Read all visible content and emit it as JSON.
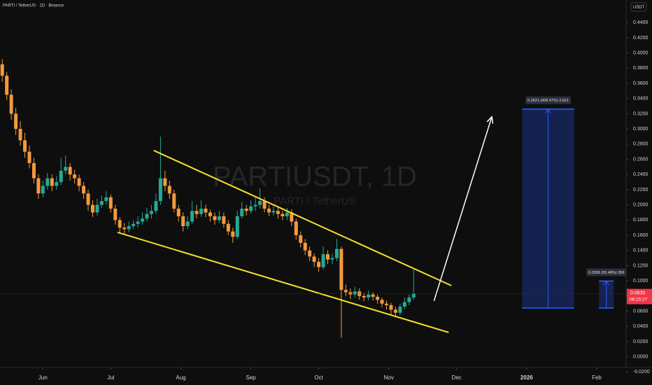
{
  "chart_data": {
    "type": "candlestick",
    "title": "PARTI / TetherUS · 1D · Binance",
    "watermark": "PARTIUSDT, 1D",
    "watermark_subtitle": "PARTI / TetherUS",
    "currency": "USDT",
    "up_color": "#22ab94",
    "down_color": "#f39a3c",
    "xlim": [
      0,
      277
    ],
    "xticks": [
      {
        "value": 19,
        "label": "Jun"
      },
      {
        "value": 49,
        "label": "Jul"
      },
      {
        "value": 80,
        "label": "Aug"
      },
      {
        "value": 111,
        "label": "Sep"
      },
      {
        "value": 141,
        "label": "Oct"
      },
      {
        "value": 172,
        "label": "Nov"
      },
      {
        "value": 202,
        "label": "Dec"
      },
      {
        "value": 233,
        "label": "2026"
      },
      {
        "value": 264,
        "label": "Feb"
      }
    ],
    "ylim": [
      -0.0141,
      0.4697
    ],
    "yticks": [
      {
        "value": 0.44,
        "label": "0.4400"
      },
      {
        "value": 0.42,
        "label": "0.4200"
      },
      {
        "value": 0.4,
        "label": "0.4000"
      },
      {
        "value": 0.38,
        "label": "0.3800"
      },
      {
        "value": 0.36,
        "label": "0.3600"
      },
      {
        "value": 0.34,
        "label": "0.3400"
      },
      {
        "value": 0.32,
        "label": "0.3200"
      },
      {
        "value": 0.3,
        "label": "0.3000"
      },
      {
        "value": 0.28,
        "label": "0.2800"
      },
      {
        "value": 0.26,
        "label": "0.2600"
      },
      {
        "value": 0.24,
        "label": "0.2400"
      },
      {
        "value": 0.22,
        "label": "0.2200"
      },
      {
        "value": 0.2,
        "label": "0.2000"
      },
      {
        "value": 0.18,
        "label": "0.1800"
      },
      {
        "value": 0.16,
        "label": "0.1600"
      },
      {
        "value": 0.14,
        "label": "0.1400"
      },
      {
        "value": 0.12,
        "label": "0.1200"
      },
      {
        "value": 0.1,
        "label": "0.1000"
      },
      {
        "value": 0.08,
        "label": "0.0800"
      },
      {
        "value": 0.06,
        "label": "0.0600"
      },
      {
        "value": 0.04,
        "label": "0.0400"
      },
      {
        "value": 0.02,
        "label": "0.0200"
      },
      {
        "value": 0,
        "label": "0.0000"
      },
      {
        "value": -0.02,
        "label": "-0.0200"
      }
    ],
    "x": [
      1,
      3,
      5,
      7,
      9,
      11,
      13,
      15,
      17,
      19,
      21,
      23,
      25,
      27,
      29,
      31,
      33,
      35,
      37,
      39,
      41,
      43,
      45,
      47,
      49,
      51,
      53,
      55,
      57,
      59,
      61,
      63,
      65,
      67,
      69,
      71,
      73,
      75,
      77,
      79,
      81,
      83,
      85,
      87,
      89,
      91,
      93,
      95,
      97,
      99,
      101,
      103,
      105,
      107,
      109,
      111,
      113,
      115,
      117,
      119,
      121,
      123,
      125,
      127,
      129,
      131,
      133,
      135,
      137,
      139,
      141,
      143,
      145,
      147,
      149,
      151,
      153,
      155,
      157,
      159,
      161,
      163,
      165,
      167,
      169,
      171,
      173,
      175,
      177,
      179,
      181,
      183
    ],
    "open": [
      0.385,
      0.37,
      0.345,
      0.32,
      0.3,
      0.285,
      0.27,
      0.255,
      0.235,
      0.215,
      0.225,
      0.235,
      0.225,
      0.23,
      0.245,
      0.25,
      0.24,
      0.235,
      0.225,
      0.215,
      0.2,
      0.19,
      0.2,
      0.205,
      0.21,
      0.195,
      0.18,
      0.17,
      0.168,
      0.172,
      0.175,
      0.178,
      0.182,
      0.188,
      0.192,
      0.205,
      0.235,
      0.225,
      0.215,
      0.195,
      0.185,
      0.172,
      0.178,
      0.192,
      0.188,
      0.195,
      0.19,
      0.185,
      0.18,
      0.185,
      0.175,
      0.165,
      0.158,
      0.185,
      0.195,
      0.192,
      0.198,
      0.2,
      0.205,
      0.195,
      0.19,
      0.192,
      0.188,
      0.185,
      0.19,
      0.178,
      0.16,
      0.15,
      0.14,
      0.132,
      0.125,
      0.118,
      0.135,
      0.128,
      0.13,
      0.142,
      0.088,
      0.085,
      0.082,
      0.086,
      0.08,
      0.078,
      0.082,
      0.079,
      0.075,
      0.07,
      0.068,
      0.062,
      0.058,
      0.066,
      0.072,
      0.078
    ],
    "high": [
      0.392,
      0.375,
      0.352,
      0.328,
      0.31,
      0.295,
      0.278,
      0.262,
      0.24,
      0.232,
      0.242,
      0.24,
      0.238,
      0.262,
      0.265,
      0.255,
      0.246,
      0.24,
      0.23,
      0.22,
      0.206,
      0.208,
      0.212,
      0.218,
      0.214,
      0.2,
      0.184,
      0.176,
      0.178,
      0.18,
      0.185,
      0.19,
      0.196,
      0.2,
      0.215,
      0.29,
      0.245,
      0.232,
      0.22,
      0.2,
      0.19,
      0.185,
      0.205,
      0.2,
      0.206,
      0.2,
      0.194,
      0.19,
      0.192,
      0.19,
      0.18,
      0.17,
      0.192,
      0.204,
      0.2,
      0.206,
      0.21,
      0.222,
      0.21,
      0.2,
      0.198,
      0.196,
      0.192,
      0.196,
      0.194,
      0.182,
      0.165,
      0.155,
      0.145,
      0.136,
      0.13,
      0.145,
      0.14,
      0.136,
      0.155,
      0.145,
      0.095,
      0.09,
      0.092,
      0.09,
      0.084,
      0.087,
      0.085,
      0.082,
      0.078,
      0.074,
      0.071,
      0.066,
      0.07,
      0.078,
      0.082,
      0.115
    ],
    "low": [
      0.362,
      0.338,
      0.312,
      0.292,
      0.278,
      0.262,
      0.248,
      0.228,
      0.208,
      0.21,
      0.22,
      0.218,
      0.22,
      0.226,
      0.24,
      0.232,
      0.228,
      0.218,
      0.208,
      0.192,
      0.184,
      0.186,
      0.196,
      0.2,
      0.19,
      0.174,
      0.164,
      0.162,
      0.164,
      0.168,
      0.17,
      0.174,
      0.178,
      0.182,
      0.188,
      0.2,
      0.218,
      0.208,
      0.19,
      0.178,
      0.165,
      0.168,
      0.175,
      0.182,
      0.184,
      0.184,
      0.178,
      0.174,
      0.176,
      0.17,
      0.16,
      0.15,
      0.155,
      0.182,
      0.186,
      0.188,
      0.192,
      0.195,
      0.19,
      0.185,
      0.186,
      0.182,
      0.18,
      0.18,
      0.172,
      0.154,
      0.144,
      0.134,
      0.126,
      0.118,
      0.112,
      0.115,
      0.122,
      0.122,
      0.126,
      0.025,
      0.08,
      0.076,
      0.078,
      0.075,
      0.073,
      0.074,
      0.074,
      0.07,
      0.065,
      0.062,
      0.056,
      0.052,
      0.055,
      0.063,
      0.068,
      0.075
    ],
    "close": [
      0.37,
      0.345,
      0.32,
      0.3,
      0.285,
      0.27,
      0.255,
      0.235,
      0.215,
      0.225,
      0.235,
      0.225,
      0.23,
      0.245,
      0.25,
      0.24,
      0.235,
      0.225,
      0.215,
      0.2,
      0.19,
      0.2,
      0.205,
      0.21,
      0.195,
      0.18,
      0.17,
      0.168,
      0.172,
      0.175,
      0.178,
      0.182,
      0.188,
      0.192,
      0.205,
      0.235,
      0.225,
      0.215,
      0.195,
      0.185,
      0.172,
      0.178,
      0.192,
      0.188,
      0.195,
      0.19,
      0.185,
      0.18,
      0.185,
      0.175,
      0.165,
      0.158,
      0.185,
      0.195,
      0.192,
      0.198,
      0.2,
      0.205,
      0.195,
      0.19,
      0.192,
      0.188,
      0.185,
      0.19,
      0.178,
      0.16,
      0.15,
      0.14,
      0.132,
      0.125,
      0.118,
      0.135,
      0.128,
      0.13,
      0.142,
      0.088,
      0.085,
      0.082,
      0.086,
      0.08,
      0.078,
      0.082,
      0.079,
      0.075,
      0.07,
      0.068,
      0.062,
      0.058,
      0.066,
      0.072,
      0.078,
      0.083
    ],
    "last_price": {
      "value": 0.083,
      "label": "0.0830"
    },
    "countdown": "08:15:27",
    "trendlines": [
      {
        "color": "#f5e12a",
        "x": [
          68,
          199.7
        ],
        "y": [
          0.2716,
          0.0937
        ]
      },
      {
        "color": "#f5e12a",
        "x": [
          52,
          198.5
        ],
        "y": [
          0.1638,
          0.032
        ]
      }
    ],
    "arrow": {
      "color": "#ffffff",
      "x": [
        192,
        217.6
      ],
      "y": [
        0.0735,
        0.316
      ]
    },
    "positions": [
      {
        "x": [
          231,
          254
        ],
        "entry": 0.0641,
        "target": 0.3262,
        "label": "0.2621 (408.47%) 2,621"
      },
      {
        "x": [
          265,
          271.5
        ],
        "entry": 0.0641,
        "target": 0.0997,
        "label": "0.0356 (55.48%) 356"
      }
    ]
  }
}
